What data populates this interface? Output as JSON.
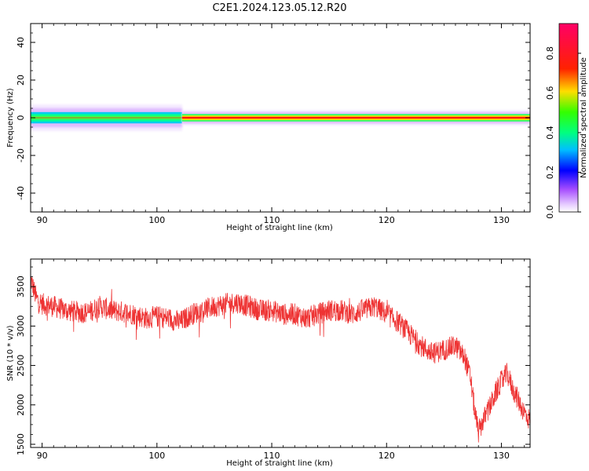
{
  "figure": {
    "title": "C2E1.2024.123.05.12.R20"
  },
  "chart_data": [
    {
      "type": "heatmap",
      "title": "C2E1.2024.123.05.12.R20",
      "xlabel": "Height of straight line (km)",
      "ylabel": "Frequency (Hz)",
      "xlim": [
        89.0,
        132.5
      ],
      "ylim": [
        -50,
        50
      ],
      "xticks": [
        90,
        100,
        110,
        120,
        130
      ],
      "yticks": [
        -40,
        -20,
        0,
        20,
        40
      ],
      "band": {
        "center_freq": 0,
        "segments": [
          {
            "x": [
              89.0,
              102.2
            ],
            "half_width_hz": [
              1,
              2,
              3,
              5,
              7
            ],
            "peak_amplitude": 0.45
          },
          {
            "x": [
              102.2,
              132.5
            ],
            "half_width_hz": [
              0.5,
              1.2,
              2,
              3,
              4
            ],
            "peak_amplitude": 0.85
          }
        ]
      },
      "colorbar": {
        "label": "Normalized spectral amplitude",
        "range": [
          0.0,
          0.95
        ],
        "ticks": [
          "0.0",
          "0.2",
          "0.4",
          "0.6",
          "0.8"
        ],
        "colormap": "gist_rainbow_r-like (white, violet, blue, cyan, green, yellow, red, magenta)"
      }
    },
    {
      "type": "line",
      "xlabel": "Height of straight line (km)",
      "ylabel": "SNR (10 * v/v)",
      "xlim": [
        89.0,
        132.5
      ],
      "ylim": [
        1460,
        3850
      ],
      "xticks": [
        90,
        100,
        110,
        120,
        130
      ],
      "yticks": [
        1500,
        2000,
        2500,
        3000,
        3500
      ],
      "series": [
        {
          "color": "#ee3333",
          "x": [
            89.0,
            89.5,
            90.0,
            91.0,
            92.0,
            93.0,
            94.0,
            95.0,
            96.0,
            97.0,
            98.0,
            99.0,
            100.0,
            101.0,
            102.0,
            103.0,
            104.0,
            105.0,
            106.0,
            107.0,
            108.0,
            109.0,
            110.0,
            111.0,
            112.0,
            113.0,
            114.0,
            115.0,
            116.0,
            117.0,
            118.0,
            119.0,
            120.0,
            121.0,
            122.0,
            123.0,
            124.0,
            125.0,
            126.0,
            126.8,
            127.3,
            127.7,
            128.0,
            128.4,
            129.0,
            129.5,
            130.0,
            130.5,
            131.0,
            131.5,
            132.0,
            132.5
          ],
          "values": [
            3600,
            3350,
            3280,
            3250,
            3200,
            3180,
            3170,
            3250,
            3200,
            3180,
            3150,
            3100,
            3120,
            3100,
            3050,
            3150,
            3200,
            3250,
            3280,
            3300,
            3250,
            3200,
            3200,
            3150,
            3150,
            3100,
            3150,
            3200,
            3200,
            3150,
            3200,
            3250,
            3150,
            3050,
            2900,
            2750,
            2650,
            2700,
            2750,
            2600,
            2350,
            1900,
            1650,
            1800,
            1980,
            2150,
            2300,
            2400,
            2200,
            2050,
            1900,
            1800
          ],
          "noise_amplitude": 140
        }
      ]
    }
  ]
}
